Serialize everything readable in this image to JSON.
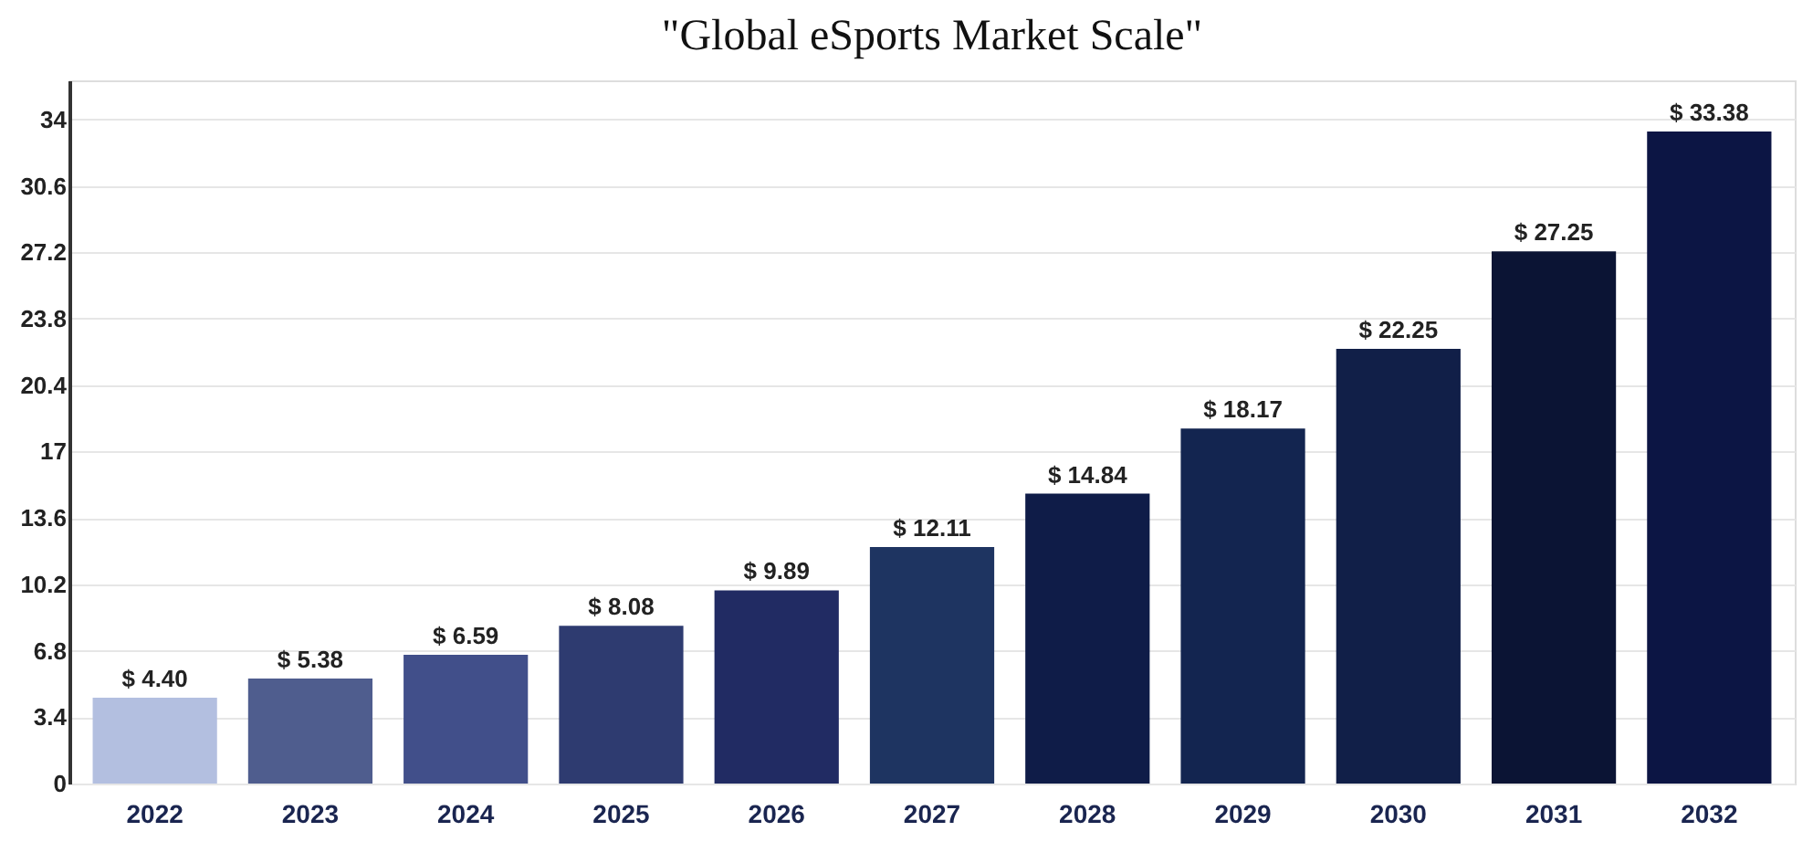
{
  "chart_data": {
    "type": "bar",
    "title": "\"Global eSports Market Scale\"",
    "categories": [
      "2022",
      "2023",
      "2024",
      "2025",
      "2026",
      "2027",
      "2028",
      "2029",
      "2030",
      "2031",
      "2032"
    ],
    "values": [
      4.4,
      5.38,
      6.59,
      8.08,
      9.89,
      12.11,
      14.84,
      18.17,
      22.25,
      27.25,
      33.38
    ],
    "value_labels": [
      "$ 4.40",
      "$ 5.38",
      "$ 6.59",
      "$ 8.08",
      "$ 9.89",
      "$ 12.11",
      "$ 14.84",
      "$ 18.17",
      "$ 22.25",
      "$ 27.25",
      "$ 33.38"
    ],
    "colors": [
      "#b3bfe0",
      "#4f5d8e",
      "#414f8a",
      "#2e3b70",
      "#212b63",
      "#1e3461",
      "#0f1c48",
      "#132550",
      "#111f48",
      "#0b1434",
      "#0c1544"
    ],
    "ylim": [
      0,
      36
    ],
    "yticks": [
      0,
      3.4,
      6.8,
      10.2,
      13.6,
      17,
      20.4,
      23.8,
      27.2,
      30.6,
      34
    ],
    "grid": "y",
    "legend": false
  }
}
